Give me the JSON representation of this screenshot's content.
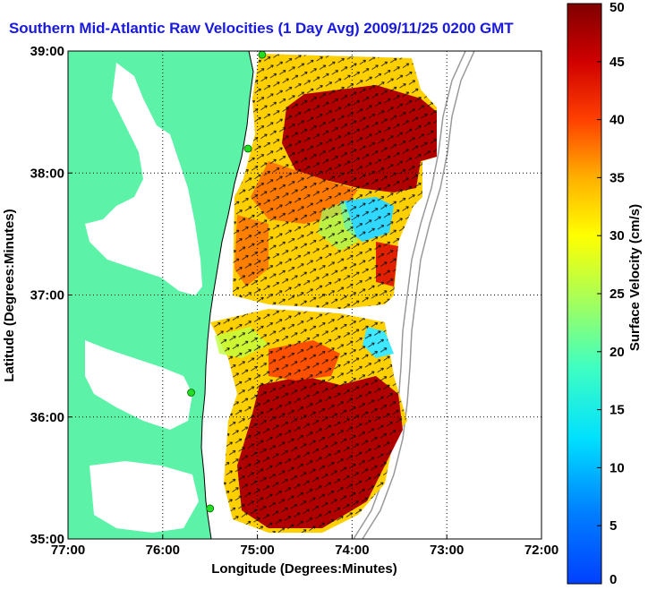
{
  "title": "Southern Mid-Atlantic Raw Velocities (1 Day Avg) 2009/11/25 0200 GMT",
  "map": {
    "xlabel": "Longitude (Degrees:Minutes)",
    "ylabel": "Latitude (Degrees:Minutes)",
    "x_ticks": [
      "77:00",
      "76:00",
      "75:00",
      "74:00",
      "73:00",
      "72:00"
    ],
    "y_ticks": [
      "39:00",
      "38:00",
      "37:00",
      "36:00",
      "35:00"
    ],
    "lon_range": [
      -77,
      -72
    ],
    "lat_range": [
      35,
      39
    ],
    "grid": "dotted",
    "land_color": "#5cf2a8"
  },
  "colorbar": {
    "label": "Surface Velocity (cm/s)",
    "ticks": [
      "0",
      "5",
      "10",
      "15",
      "20",
      "25",
      "30",
      "35",
      "40",
      "45",
      "50"
    ],
    "range": [
      0,
      50
    ],
    "colormap": "jet"
  },
  "stations": [
    {
      "lon": -74.95,
      "lat": 38.97
    },
    {
      "lon": -75.1,
      "lat": 38.2
    },
    {
      "lon": -75.7,
      "lat": 36.2
    },
    {
      "lon": -75.5,
      "lat": 35.25
    }
  ]
}
